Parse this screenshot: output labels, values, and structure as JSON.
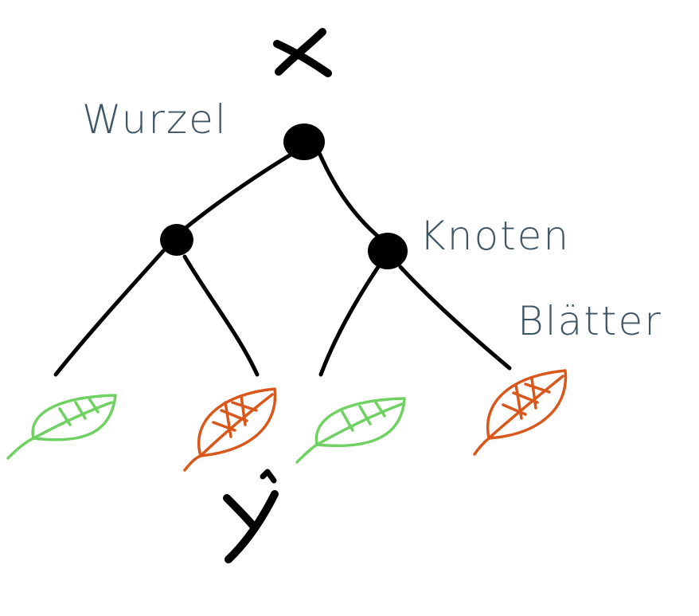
{
  "labels": {
    "root": "Wurzel",
    "node": "Knoten",
    "leaves": "Blätter"
  },
  "symbols": {
    "input": "x",
    "output": "ŷ"
  },
  "colors": {
    "edges_and_nodes": "#000000",
    "labels": "#3d5566",
    "leaf_green": "#6fd162",
    "leaf_orange": "#d9571a"
  },
  "icons": {
    "leaf": "leaf-icon"
  },
  "leaves": [
    {
      "color": "green"
    },
    {
      "color": "orange"
    },
    {
      "color": "green"
    },
    {
      "color": "orange"
    }
  ]
}
